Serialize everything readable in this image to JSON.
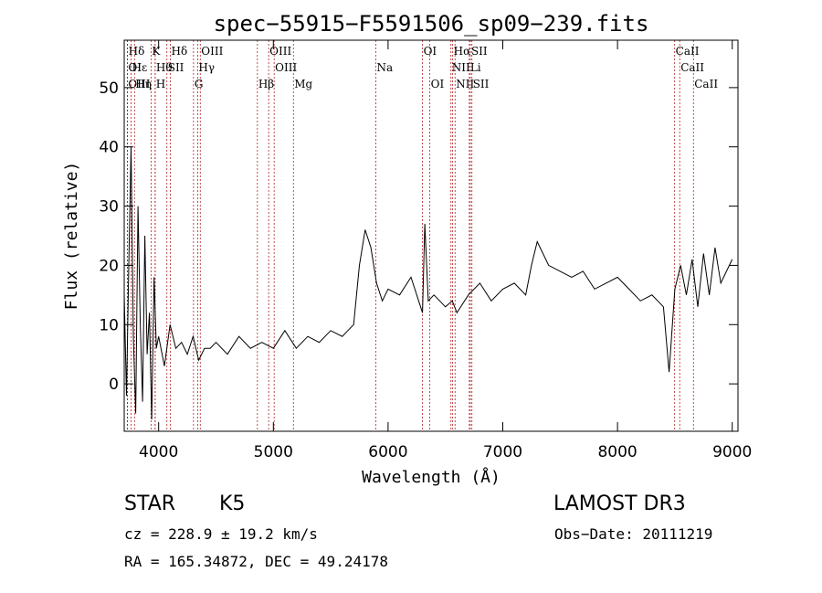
{
  "chart_data": {
    "type": "line",
    "title": "spec−55915−F5591506_sp09−239.fits",
    "xlabel": "Wavelength (Å)",
    "ylabel": "Flux (relative)",
    "xlim": [
      3700,
      9050
    ],
    "ylim": [
      -8,
      58
    ],
    "xticks": [
      4000,
      5000,
      6000,
      7000,
      8000,
      9000
    ],
    "yticks": [
      0,
      10,
      20,
      30,
      40,
      50
    ],
    "series": [
      {
        "name": "flux",
        "x": [
          3700,
          3720,
          3740,
          3760,
          3780,
          3800,
          3820,
          3840,
          3860,
          3880,
          3900,
          3920,
          3940,
          3960,
          3980,
          4000,
          4050,
          4100,
          4150,
          4200,
          4250,
          4300,
          4350,
          4400,
          4450,
          4500,
          4600,
          4700,
          4800,
          4900,
          5000,
          5100,
          5200,
          5300,
          5400,
          5500,
          5600,
          5700,
          5750,
          5800,
          5850,
          5900,
          5950,
          6000,
          6100,
          6200,
          6300,
          6320,
          6350,
          6400,
          6500,
          6560,
          6600,
          6700,
          6800,
          6900,
          7000,
          7100,
          7200,
          7250,
          7300,
          7400,
          7500,
          7600,
          7700,
          7800,
          7900,
          8000,
          8100,
          8200,
          8300,
          8400,
          8450,
          8500,
          8550,
          8600,
          8650,
          8700,
          8750,
          8800,
          8850,
          8900,
          8950,
          9000
        ],
        "y": [
          15,
          -2,
          20,
          40,
          8,
          -5,
          30,
          10,
          -3,
          25,
          5,
          12,
          -6,
          18,
          6,
          8,
          3,
          10,
          6,
          7,
          5,
          8,
          4,
          6,
          6,
          7,
          5,
          8,
          6,
          7,
          6,
          9,
          6,
          8,
          7,
          9,
          8,
          10,
          20,
          26,
          23,
          17,
          14,
          16,
          15,
          18,
          12,
          27,
          14,
          15,
          13,
          14,
          12,
          15,
          17,
          14,
          16,
          17,
          15,
          20,
          24,
          20,
          19,
          18,
          19,
          16,
          17,
          18,
          16,
          14,
          15,
          13,
          2,
          16,
          20,
          15,
          21,
          13,
          22,
          15,
          23,
          17,
          19,
          21
        ]
      }
    ],
    "lines": [
      {
        "label": "Hδ",
        "x": 3729,
        "row": 0
      },
      {
        "label": "OI",
        "x": 3727,
        "row": 1
      },
      {
        "label": "OIII",
        "x": 3727,
        "row": 2
      },
      {
        "label": "Hε",
        "x": 3760,
        "row": 1
      },
      {
        "label": "Hη",
        "x": 3790,
        "row": 2
      },
      {
        "label": "K",
        "x": 3934,
        "row": 0
      },
      {
        "label": "Hθ",
        "x": 3970,
        "row": 1
      },
      {
        "label": "H",
        "x": 3969,
        "row": 2
      },
      {
        "label": "SII",
        "x": 4072,
        "row": 1
      },
      {
        "label": "Hδ",
        "x": 4102,
        "row": 0
      },
      {
        "label": "OIII",
        "x": 4363,
        "row": 0
      },
      {
        "label": "Hγ",
        "x": 4340,
        "row": 1
      },
      {
        "label": "G",
        "x": 4304,
        "row": 2
      },
      {
        "label": "OIII",
        "x": 4959,
        "row": 0
      },
      {
        "label": "OIII",
        "x": 5007,
        "row": 1
      },
      {
        "label": "Hβ",
        "x": 4861,
        "row": 2
      },
      {
        "label": "Mg",
        "x": 5175,
        "row": 2
      },
      {
        "label": "Na",
        "x": 5893,
        "row": 1
      },
      {
        "label": "OI",
        "x": 6300,
        "row": 0
      },
      {
        "label": "OI",
        "x": 6364,
        "row": 2
      },
      {
        "label": "Hα",
        "x": 6563,
        "row": 0
      },
      {
        "label": "NII",
        "x": 6548,
        "row": 1
      },
      {
        "label": "NII",
        "x": 6584,
        "row": 2
      },
      {
        "label": "SII",
        "x": 6717,
        "row": 0
      },
      {
        "label": "Li",
        "x": 6708,
        "row": 1
      },
      {
        "label": "SII",
        "x": 6731,
        "row": 2
      },
      {
        "label": "CaII",
        "x": 8498,
        "row": 0
      },
      {
        "label": "CaII",
        "x": 8542,
        "row": 1
      },
      {
        "label": "CaII",
        "x": 8662,
        "row": 2
      }
    ],
    "colors": {
      "spectrum": "#000000",
      "line_markers": "#b22222",
      "axes": "#000000"
    }
  },
  "info": {
    "object_type": "STAR",
    "subclass": "K5",
    "survey": "LAMOST DR3",
    "cz": "cz = 228.9 ± 19.2 km/s",
    "obs_date": "Obs−Date: 20111219",
    "coords": "RA = 165.34872, DEC =  49.24178"
  }
}
